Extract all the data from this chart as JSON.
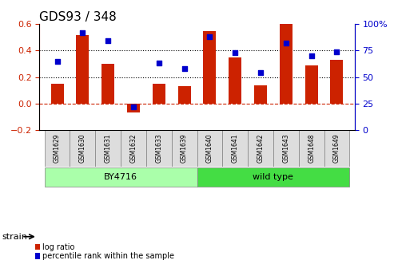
{
  "title": "GDS93 / 348",
  "samples": [
    "GSM1629",
    "GSM1630",
    "GSM1631",
    "GSM1632",
    "GSM1633",
    "GSM1639",
    "GSM1640",
    "GSM1641",
    "GSM1642",
    "GSM1643",
    "GSM1648",
    "GSM1649"
  ],
  "log_ratio": [
    0.15,
    0.52,
    0.3,
    -0.07,
    0.15,
    0.13,
    0.55,
    0.35,
    0.14,
    0.6,
    0.29,
    0.33
  ],
  "percentile_rank": [
    65,
    92,
    84,
    22,
    63,
    58,
    88,
    73,
    54,
    82,
    70,
    74
  ],
  "bar_color": "#cc2200",
  "dot_color": "#0000cc",
  "ylim_left": [
    -0.2,
    0.6
  ],
  "ylim_right": [
    0,
    100
  ],
  "yticks_left": [
    -0.2,
    0.0,
    0.2,
    0.4,
    0.6
  ],
  "yticks_right": [
    0,
    25,
    50,
    75,
    100
  ],
  "ytick_labels_right": [
    "0",
    "25",
    "50",
    "75",
    "100%"
  ],
  "hline_y": 0.0,
  "dotted_lines": [
    0.2,
    0.4
  ],
  "strain_groups": [
    {
      "label": "BY4716",
      "start": 0,
      "end": 6,
      "color": "#aaffaa"
    },
    {
      "label": "wild type",
      "start": 6,
      "end": 12,
      "color": "#44dd44"
    }
  ],
  "strain_label": "strain",
  "legend_bar_label": "log ratio",
  "legend_dot_label": "percentile rank within the sample",
  "title_fontsize": 11,
  "tick_fontsize": 8,
  "sample_fontsize": 5.5,
  "legend_fontsize": 7,
  "strain_fontsize": 8,
  "group_label_fontsize": 8
}
